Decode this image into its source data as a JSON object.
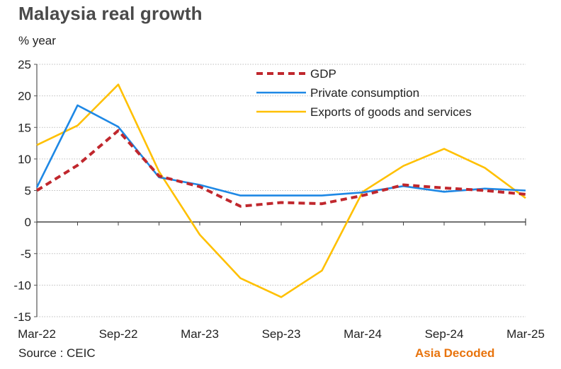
{
  "header": {
    "title": "Malaysia real growth",
    "unit_label": "% year"
  },
  "footer": {
    "source": "Source : CEIC",
    "brand": "Asia Decoded"
  },
  "chart_data": {
    "type": "line",
    "title": "Malaysia real growth",
    "ylabel": "% year",
    "ylim": [
      -15,
      25
    ],
    "yticks": [
      -15,
      -10,
      -5,
      0,
      5,
      10,
      15,
      20,
      25
    ],
    "grid": true,
    "legend_position": "top-right",
    "x": [
      "Mar-22",
      "Jun-22",
      "Sep-22",
      "Dec-22",
      "Mar-23",
      "Jun-23",
      "Sep-23",
      "Dec-23",
      "Mar-24",
      "Jun-24",
      "Sep-24",
      "Dec-24",
      "Mar-25"
    ],
    "x_tick_labels": [
      "Mar-22",
      "Sep-22",
      "Mar-23",
      "Sep-23",
      "Mar-24",
      "Sep-24",
      "Mar-25"
    ],
    "series": [
      {
        "name": "GDP",
        "color": "#c0272d",
        "dash": true,
        "values": [
          5.0,
          9.0,
          14.5,
          7.3,
          5.6,
          2.5,
          3.1,
          2.9,
          4.2,
          5.9,
          5.4,
          5.0,
          4.4
        ]
      },
      {
        "name": "Private consumption",
        "color": "#1e88e5",
        "dash": false,
        "values": [
          5.5,
          18.5,
          15.1,
          7.1,
          5.9,
          4.2,
          4.2,
          4.2,
          4.7,
          5.7,
          4.8,
          5.3,
          5.0
        ]
      },
      {
        "name": "Exports of goods and services",
        "color": "#ffc000",
        "dash": false,
        "values": [
          12.2,
          15.3,
          21.8,
          8.0,
          -2.0,
          -8.9,
          -11.9,
          -7.7,
          4.8,
          8.9,
          11.6,
          8.6,
          3.8
        ]
      }
    ]
  }
}
